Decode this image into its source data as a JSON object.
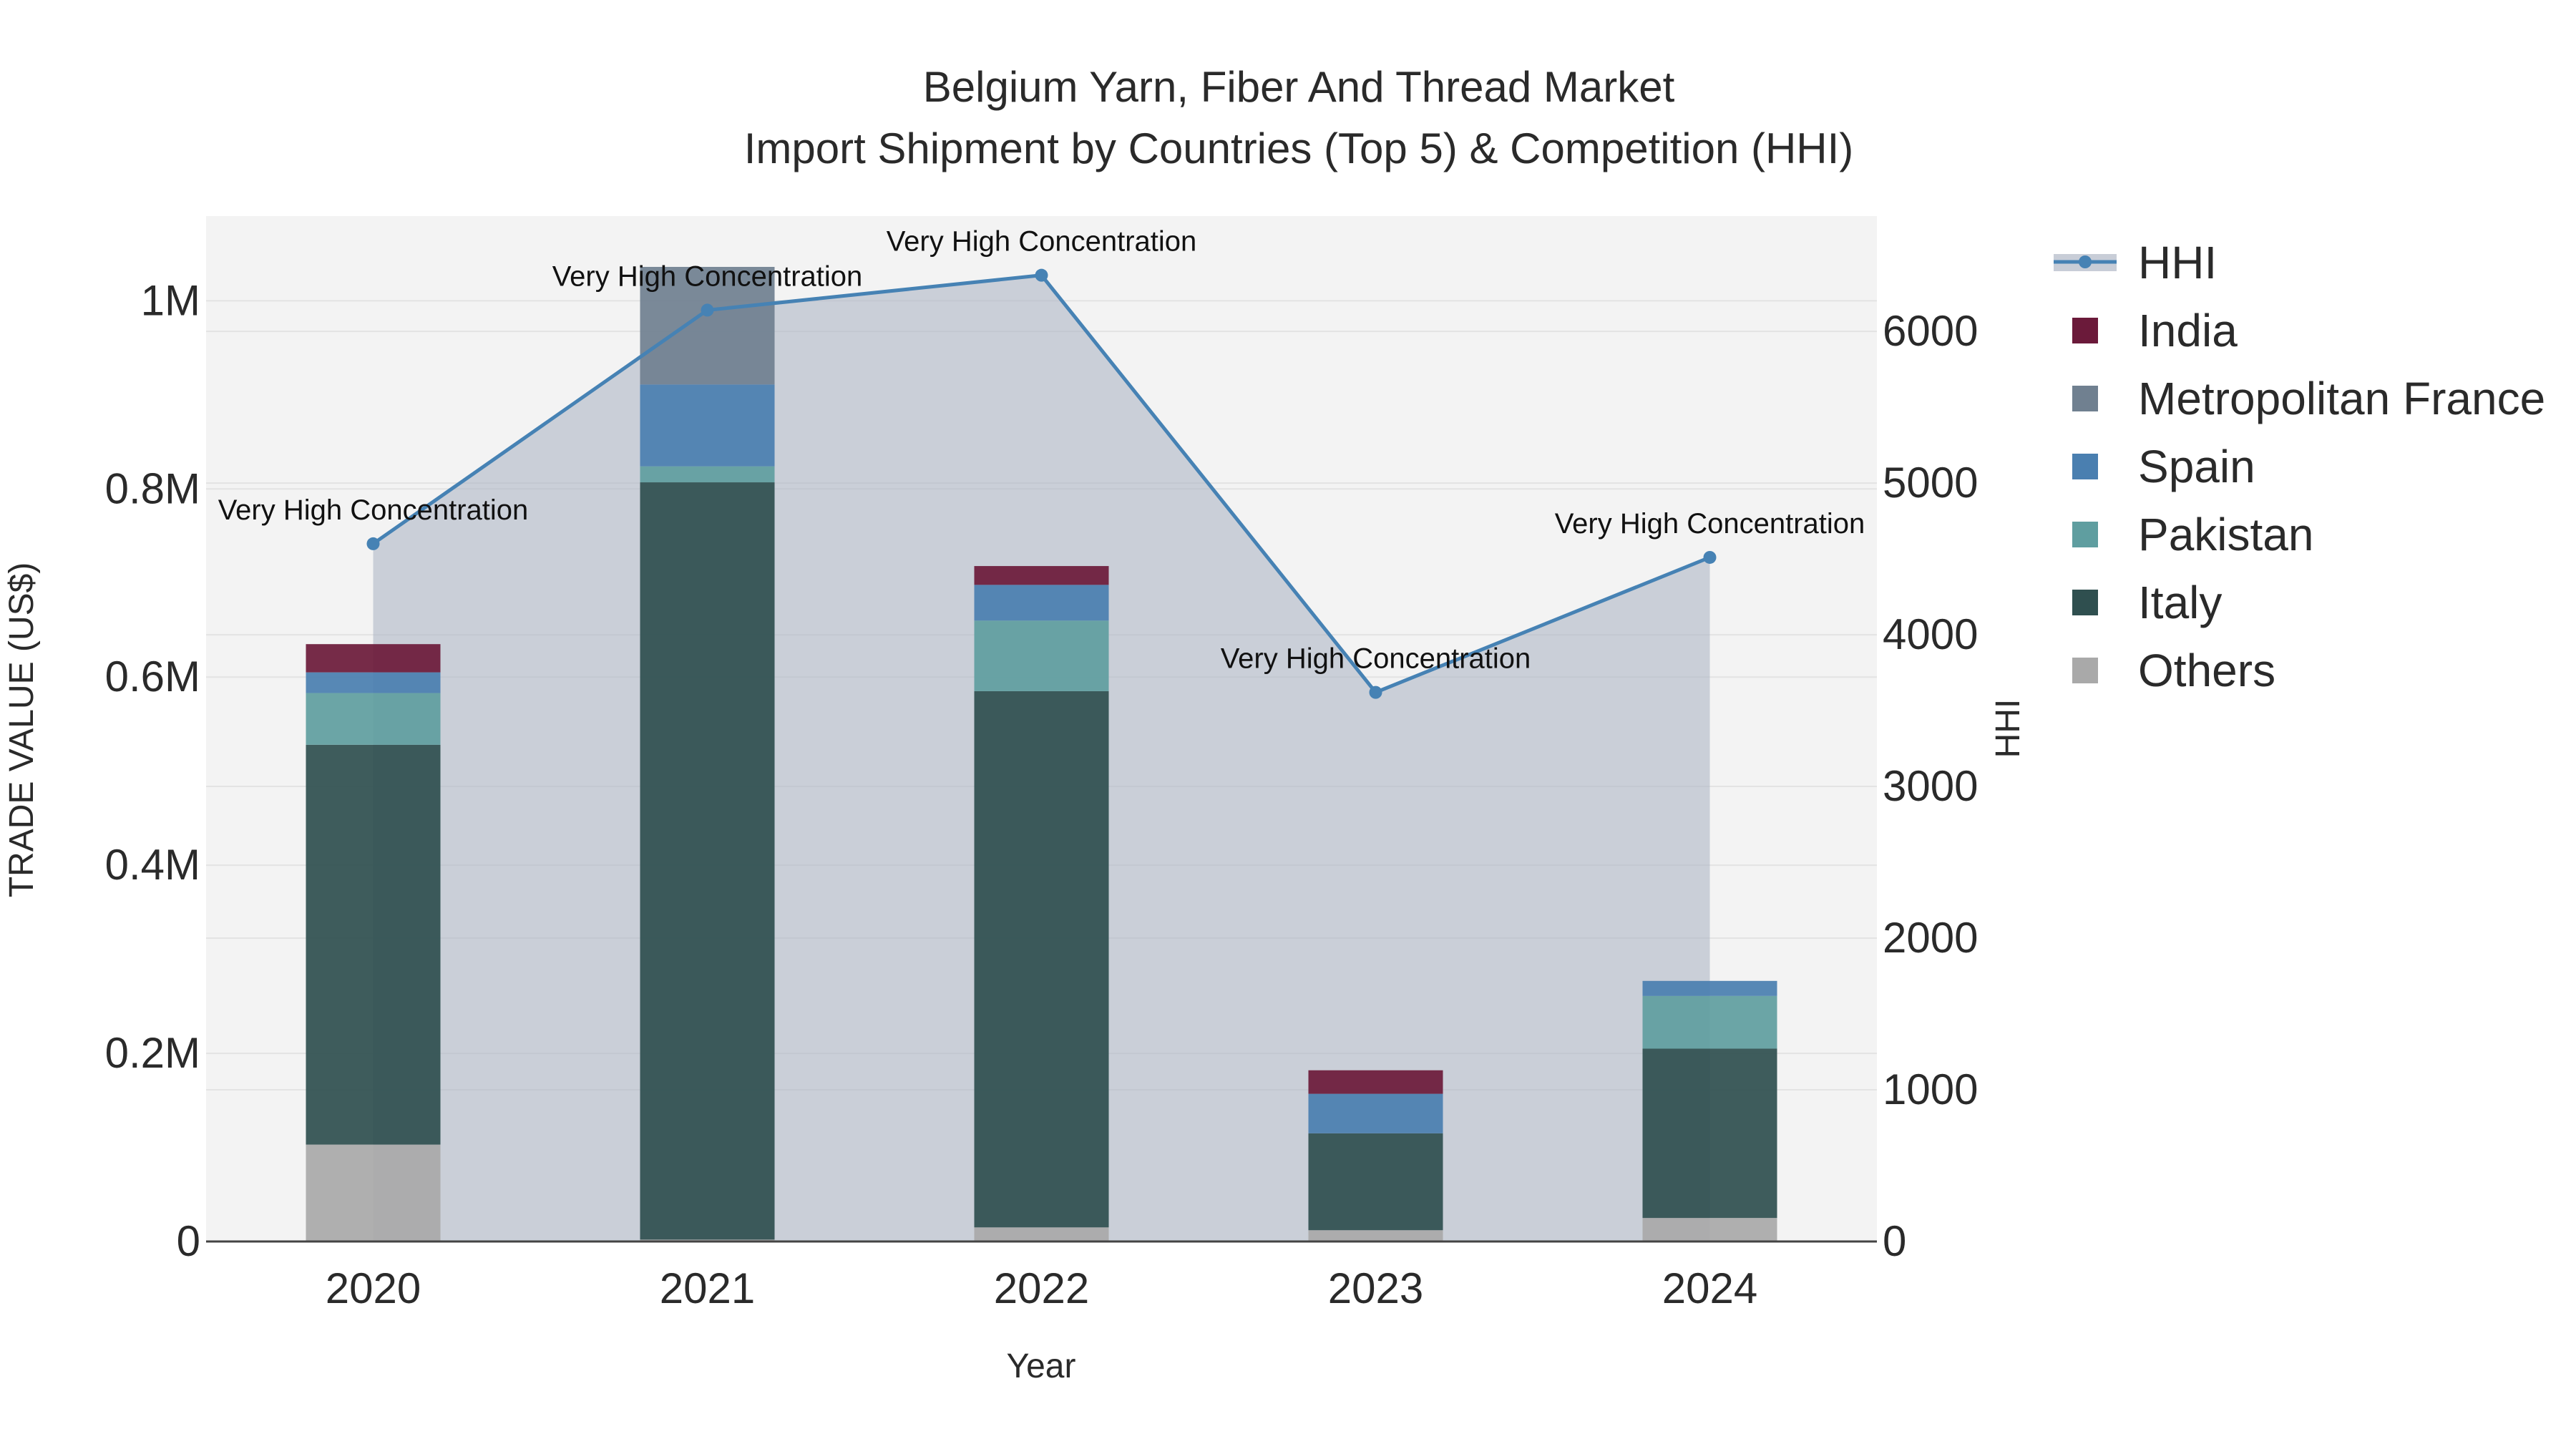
{
  "chart_data": {
    "type": "bar",
    "title_line1": "Belgium Yarn, Fiber And Thread Market",
    "title_line2": "Import Shipment by Countries (Top 5) & Competition (HHI)",
    "xlabel": "Year",
    "ylabel": "TRADE VALUE (US$)",
    "y2label": "HHI",
    "categories": [
      "2020",
      "2021",
      "2022",
      "2023",
      "2024"
    ],
    "ylim": [
      0,
      1090000
    ],
    "y2lim": [
      0,
      6760
    ],
    "y_ticks": [
      {
        "value": 0,
        "label": "0"
      },
      {
        "value": 200000,
        "label": "0.2M"
      },
      {
        "value": 400000,
        "label": "0.4M"
      },
      {
        "value": 600000,
        "label": "0.6M"
      },
      {
        "value": 800000,
        "label": "0.8M"
      },
      {
        "value": 1000000,
        "label": "1M"
      }
    ],
    "y2_ticks": [
      {
        "value": 0,
        "label": "0"
      },
      {
        "value": 1000,
        "label": "1000"
      },
      {
        "value": 2000,
        "label": "2000"
      },
      {
        "value": 3000,
        "label": "3000"
      },
      {
        "value": 4000,
        "label": "4000"
      },
      {
        "value": 5000,
        "label": "5000"
      },
      {
        "value": 6000,
        "label": "6000"
      }
    ],
    "grid": true,
    "legend_position": "right",
    "stack_order": [
      "Others",
      "Italy",
      "Pakistan",
      "Spain",
      "Metropolitan France",
      "India"
    ],
    "series": [
      {
        "name": "India",
        "color": "#6b1a3a",
        "values": [
          30000,
          0,
          20000,
          25000,
          0
        ]
      },
      {
        "name": "Metropolitan France",
        "color": "#708090",
        "values": [
          0,
          125000,
          0,
          0,
          0
        ]
      },
      {
        "name": "Spain",
        "color": "#4a7fb0",
        "values": [
          22000,
          87000,
          38000,
          42000,
          16000
        ]
      },
      {
        "name": "Pakistan",
        "color": "#5f9ea0",
        "values": [
          55000,
          17000,
          75000,
          0,
          56000
        ]
      },
      {
        "name": "Italy",
        "color": "#2f4f4f",
        "values": [
          425000,
          805000,
          570000,
          103000,
          180000
        ]
      },
      {
        "name": "Others",
        "color": "#a9a9a9",
        "values": [
          103000,
          2000,
          15000,
          12000,
          25000
        ]
      }
    ],
    "hhi": {
      "name": "HHI",
      "color": "#4682b4",
      "values": [
        4600,
        6140,
        6370,
        3620,
        4510
      ],
      "annotations": [
        "Very High Concentration",
        "Very High Concentration",
        "Very High Concentration",
        "Very High Concentration",
        "Very High Concentration"
      ]
    },
    "legend": [
      "HHI",
      "India",
      "Metropolitan France",
      "Spain",
      "Pakistan",
      "Italy",
      "Others"
    ]
  }
}
